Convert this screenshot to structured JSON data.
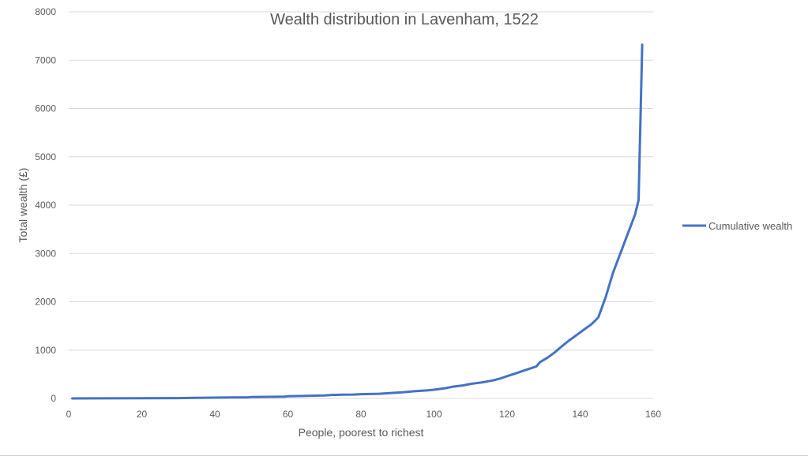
{
  "chart_data": {
    "type": "line",
    "title": "Wealth distribution in Lavenham, 1522",
    "xlabel": "People, poorest to richest",
    "ylabel": "Total wealth (£)",
    "xlim": [
      0,
      160
    ],
    "ylim": [
      0,
      8000
    ],
    "x_ticks": [
      0,
      20,
      40,
      60,
      80,
      100,
      120,
      140,
      160
    ],
    "y_ticks": [
      0,
      1000,
      2000,
      3000,
      4000,
      5000,
      6000,
      7000,
      8000
    ],
    "grid": "horizontal",
    "legend_position": "right",
    "series": [
      {
        "name": "Cumulative wealth",
        "color": "#4472c4",
        "points": [
          [
            1,
            0
          ],
          [
            10,
            2
          ],
          [
            20,
            4
          ],
          [
            30,
            6
          ],
          [
            35,
            12
          ],
          [
            40,
            16
          ],
          [
            45,
            20
          ],
          [
            49,
            22
          ],
          [
            50,
            30
          ],
          [
            55,
            33
          ],
          [
            59,
            36
          ],
          [
            60,
            44
          ],
          [
            65,
            52
          ],
          [
            70,
            60
          ],
          [
            72,
            72
          ],
          [
            75,
            76
          ],
          [
            78,
            80
          ],
          [
            80,
            88
          ],
          [
            85,
            96
          ],
          [
            88,
            110
          ],
          [
            92,
            130
          ],
          [
            95,
            150
          ],
          [
            98,
            165
          ],
          [
            100,
            180
          ],
          [
            103,
            210
          ],
          [
            105,
            240
          ],
          [
            108,
            270
          ],
          [
            110,
            300
          ],
          [
            113,
            330
          ],
          [
            116,
            370
          ],
          [
            118,
            410
          ],
          [
            120,
            460
          ],
          [
            122,
            510
          ],
          [
            124,
            560
          ],
          [
            126,
            610
          ],
          [
            128,
            660
          ],
          [
            129,
            750
          ],
          [
            131,
            840
          ],
          [
            133,
            950
          ],
          [
            135,
            1080
          ],
          [
            137,
            1200
          ],
          [
            139,
            1310
          ],
          [
            141,
            1420
          ],
          [
            143,
            1530
          ],
          [
            144,
            1600
          ],
          [
            145,
            1680
          ],
          [
            147,
            2100
          ],
          [
            149,
            2600
          ],
          [
            151,
            3000
          ],
          [
            153,
            3400
          ],
          [
            154,
            3600
          ],
          [
            155,
            3800
          ],
          [
            156,
            4100
          ],
          [
            157,
            7320
          ]
        ]
      }
    ]
  }
}
